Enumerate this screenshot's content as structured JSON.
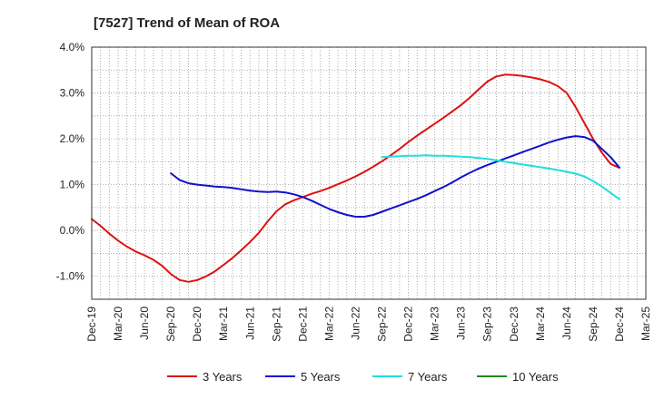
{
  "chart_data": {
    "type": "line",
    "title": "[7527]  Trend of Mean of ROA",
    "xlabel": "",
    "ylabel": "",
    "ylim": [
      -1.5,
      4.0
    ],
    "y_ticks": [
      -1.0,
      0.0,
      1.0,
      2.0,
      3.0,
      4.0
    ],
    "y_tick_labels": [
      "-1.0%",
      "0.0%",
      "1.0%",
      "2.0%",
      "3.0%",
      "4.0%"
    ],
    "x_tick_labels": [
      "Dec-19",
      "Mar-20",
      "Jun-20",
      "Sep-20",
      "Dec-20",
      "Mar-21",
      "Jun-21",
      "Sep-21",
      "Dec-21",
      "Mar-22",
      "Jun-22",
      "Sep-22",
      "Dec-22",
      "Mar-23",
      "Jun-23",
      "Sep-23",
      "Dec-23",
      "Mar-24",
      "Jun-24",
      "Sep-24",
      "Dec-24",
      "Mar-25"
    ],
    "grid": true,
    "legend_position": "bottom",
    "series": [
      {
        "name": "3 Years",
        "color": "#dd1111",
        "x": [
          "2019-12",
          "2020-01",
          "2020-02",
          "2020-03",
          "2020-04",
          "2020-05",
          "2020-06",
          "2020-07",
          "2020-08",
          "2020-09",
          "2020-10",
          "2020-11",
          "2020-12",
          "2021-01",
          "2021-02",
          "2021-03",
          "2021-04",
          "2021-05",
          "2021-06",
          "2021-07",
          "2021-08",
          "2021-09",
          "2021-10",
          "2021-11",
          "2021-12",
          "2022-01",
          "2022-02",
          "2022-03",
          "2022-04",
          "2022-05",
          "2022-06",
          "2022-07",
          "2022-08",
          "2022-09",
          "2022-10",
          "2022-11",
          "2022-12",
          "2023-01",
          "2023-02",
          "2023-03",
          "2023-04",
          "2023-05",
          "2023-06",
          "2023-07",
          "2023-08",
          "2023-09",
          "2023-10",
          "2023-11",
          "2023-12",
          "2024-01",
          "2024-02",
          "2024-03",
          "2024-04",
          "2024-05",
          "2024-06",
          "2024-07",
          "2024-08",
          "2024-09",
          "2024-10",
          "2024-11",
          "2024-12"
        ],
        "values": [
          0.25,
          0.1,
          -0.07,
          -0.22,
          -0.35,
          -0.46,
          -0.54,
          -0.64,
          -0.77,
          -0.95,
          -1.08,
          -1.12,
          -1.08,
          -1.0,
          -0.89,
          -0.75,
          -0.6,
          -0.43,
          -0.25,
          -0.05,
          0.2,
          0.42,
          0.57,
          0.66,
          0.73,
          0.8,
          0.86,
          0.93,
          1.01,
          1.09,
          1.18,
          1.28,
          1.39,
          1.51,
          1.64,
          1.78,
          1.93,
          2.07,
          2.2,
          2.33,
          2.46,
          2.6,
          2.74,
          2.9,
          3.08,
          3.25,
          3.36,
          3.4,
          3.39,
          3.37,
          3.34,
          3.3,
          3.24,
          3.15,
          3.0,
          2.7,
          2.35,
          2.0,
          1.7,
          1.45,
          1.37
        ]
      },
      {
        "name": "5 Years",
        "color": "#1111cc",
        "x": [
          "2020-09",
          "2020-10",
          "2020-11",
          "2020-12",
          "2021-01",
          "2021-02",
          "2021-03",
          "2021-04",
          "2021-05",
          "2021-06",
          "2021-07",
          "2021-08",
          "2021-09",
          "2021-10",
          "2021-11",
          "2021-12",
          "2022-01",
          "2022-02",
          "2022-03",
          "2022-04",
          "2022-05",
          "2022-06",
          "2022-07",
          "2022-08",
          "2022-09",
          "2022-10",
          "2022-11",
          "2022-12",
          "2023-01",
          "2023-02",
          "2023-03",
          "2023-04",
          "2023-05",
          "2023-06",
          "2023-07",
          "2023-08",
          "2023-09",
          "2023-10",
          "2023-11",
          "2023-12",
          "2024-01",
          "2024-02",
          "2024-03",
          "2024-04",
          "2024-05",
          "2024-06",
          "2024-07",
          "2024-08",
          "2024-09",
          "2024-10",
          "2024-11",
          "2024-12"
        ],
        "values": [
          1.25,
          1.1,
          1.03,
          1.0,
          0.98,
          0.96,
          0.95,
          0.93,
          0.9,
          0.87,
          0.85,
          0.84,
          0.85,
          0.83,
          0.79,
          0.73,
          0.65,
          0.56,
          0.47,
          0.4,
          0.34,
          0.3,
          0.3,
          0.34,
          0.41,
          0.48,
          0.55,
          0.62,
          0.69,
          0.77,
          0.86,
          0.95,
          1.05,
          1.16,
          1.26,
          1.35,
          1.43,
          1.5,
          1.57,
          1.64,
          1.71,
          1.78,
          1.85,
          1.92,
          1.98,
          2.03,
          2.06,
          2.04,
          1.96,
          1.78,
          1.6,
          1.37
        ]
      },
      {
        "name": "7 Years",
        "color": "#22dddd",
        "x": [
          "2022-09",
          "2022-10",
          "2022-11",
          "2022-12",
          "2023-01",
          "2023-02",
          "2023-03",
          "2023-04",
          "2023-05",
          "2023-06",
          "2023-07",
          "2023-08",
          "2023-09",
          "2023-10",
          "2023-11",
          "2023-12",
          "2024-01",
          "2024-02",
          "2024-03",
          "2024-04",
          "2024-05",
          "2024-06",
          "2024-07",
          "2024-08",
          "2024-09",
          "2024-10",
          "2024-11",
          "2024-12"
        ],
        "values": [
          1.6,
          1.61,
          1.62,
          1.63,
          1.63,
          1.64,
          1.63,
          1.63,
          1.62,
          1.61,
          1.6,
          1.58,
          1.56,
          1.53,
          1.5,
          1.47,
          1.44,
          1.41,
          1.38,
          1.35,
          1.32,
          1.28,
          1.24,
          1.18,
          1.08,
          0.96,
          0.82,
          0.68
        ]
      },
      {
        "name": "10 Years",
        "color": "#228822",
        "x": [],
        "values": []
      }
    ]
  }
}
